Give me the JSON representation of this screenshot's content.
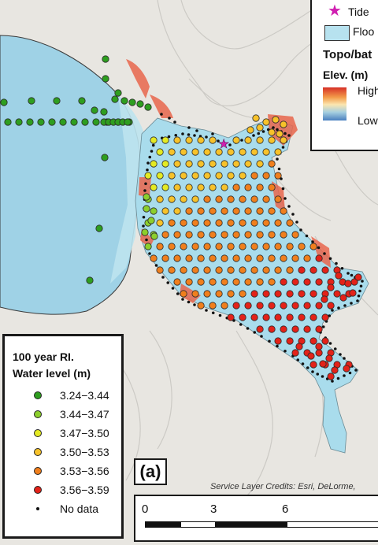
{
  "legend": {
    "title_line1": "100 year RI.",
    "title_line2": "Water level (m)",
    "classes": [
      {
        "label": "3.24−3.44",
        "color": "#2e9e1f"
      },
      {
        "label": "3.44−3.47",
        "color": "#8ccf2c"
      },
      {
        "label": "3.47−3.50",
        "color": "#e4ea22"
      },
      {
        "label": "3.50−3.53",
        "color": "#f7c22a"
      },
      {
        "label": "3.53−3.56",
        "color": "#f07f1d"
      },
      {
        "label": "3.56−3.59",
        "color": "#e32219"
      }
    ],
    "nodata_label": "No data"
  },
  "top_legend": {
    "tide_label": "Tide",
    "flood_label": "Floo",
    "topo_label": "Topo/bat",
    "elev_label": "Elev. (m)",
    "high_label": "High",
    "low_label": "Low",
    "tide_color": "#d01fb1",
    "flood_color": "#b7e2ef"
  },
  "panel_label": "(a)",
  "credits": "Service Layer Credits: Esri, DeLorme,",
  "scale": {
    "ticks": [
      "0",
      "3",
      "6"
    ]
  }
}
